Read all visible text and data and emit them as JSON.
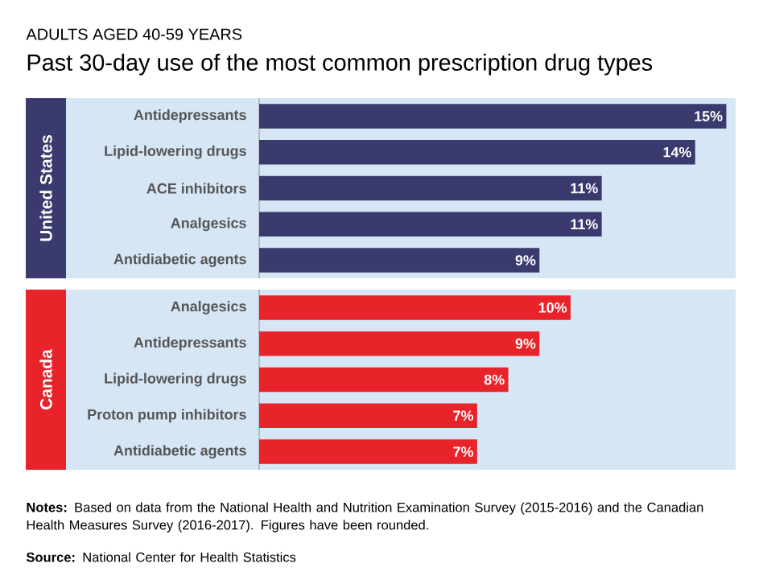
{
  "chart_data": [
    {
      "type": "bar",
      "orientation": "horizontal",
      "subtitle": "ADULTS AGED 40-59 YEARS",
      "title": "Past 30-day use of the most common prescription drug types",
      "ylabel": "United States",
      "categories": [
        "Antidepressants",
        "Lipid-lowering drugs",
        "ACE inhibitors",
        "Analgesics",
        "Antidiabetic agents"
      ],
      "values": [
        15,
        14,
        11,
        11,
        9
      ],
      "value_labels": [
        "15%",
        "14%",
        "11%",
        "11%",
        "9%"
      ],
      "color": "#3b3a6e"
    },
    {
      "type": "bar",
      "orientation": "horizontal",
      "ylabel": "Canada",
      "categories": [
        "Analgesics",
        "Antidepressants",
        "Lipid-lowering drugs",
        "Proton pump inhibitors",
        "Antidiabetic agents"
      ],
      "values": [
        10,
        9,
        8,
        7,
        7
      ],
      "value_labels": [
        "10%",
        "9%",
        "8%",
        "7%",
        "7%"
      ],
      "color": "#e8242a",
      "annotations": [
        "**Notes:** Based on data from the National Health and Nutrition Examination Survey (2015-2016) and the Canadian Health Measures Survey (2016-2017). Figures have been rounded.",
        "**Source:** National Center for Health Statistics"
      ]
    }
  ]
}
